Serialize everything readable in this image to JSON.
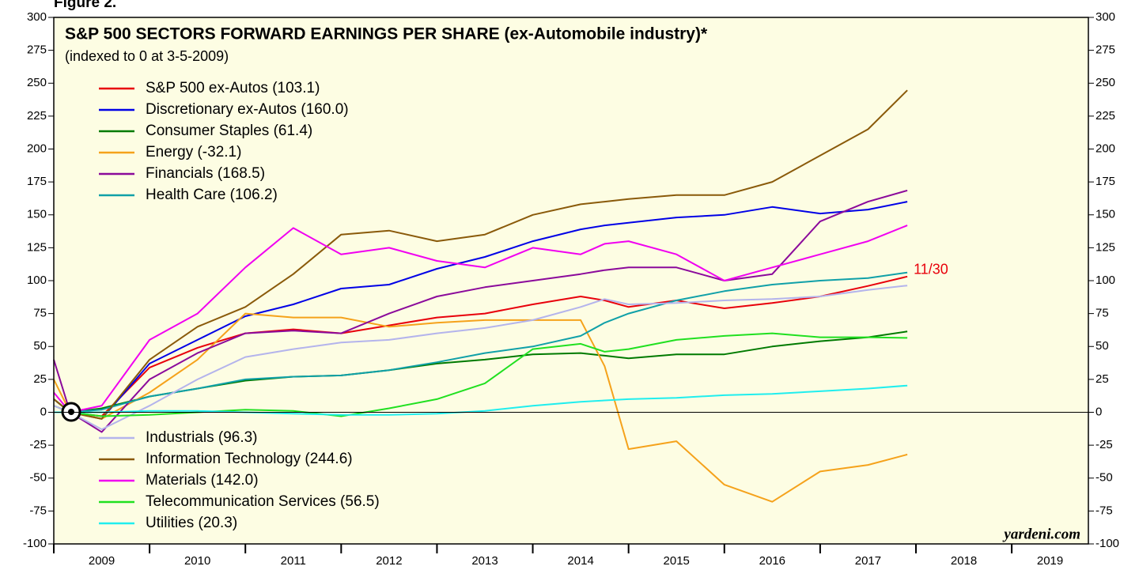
{
  "chart_data": {
    "type": "line",
    "figure_label": "Figure 2.",
    "title": "S&P 500 SECTORS FORWARD EARNINGS PER SHARE (ex-Automobile industry)*",
    "subtitle": "(indexed to 0 at 3-5-2009)",
    "end_annotation": "11/30",
    "source": "yardeni.com",
    "x": [
      2009.0,
      2009.17,
      2009.5,
      2010.0,
      2010.5,
      2011.0,
      2011.5,
      2012.0,
      2012.5,
      2013.0,
      2013.5,
      2014.0,
      2014.5,
      2014.75,
      2015.0,
      2015.5,
      2016.0,
      2016.5,
      2017.0,
      2017.5,
      2017.91
    ],
    "xlim": [
      2009,
      2019.8
    ],
    "xticks": [
      2009,
      2010,
      2011,
      2012,
      2013,
      2014,
      2015,
      2016,
      2017,
      2018,
      2019
    ],
    "ylim": [
      -100,
      300
    ],
    "yticks": [
      -100,
      -75,
      -50,
      -25,
      0,
      25,
      50,
      75,
      100,
      125,
      150,
      175,
      200,
      225,
      250,
      275,
      300
    ],
    "grid": false,
    "series": [
      {
        "name": "S&P 500 ex-Autos (103.1)",
        "color": "#e8000b",
        "values": [
          10,
          0,
          -3,
          34,
          49,
          60,
          63,
          60,
          66,
          72,
          75,
          82,
          88,
          85,
          80,
          85,
          79,
          83,
          88,
          96,
          103.1
        ]
      },
      {
        "name": "Discretionary ex-Autos (160.0)",
        "color": "#0000e6",
        "values": [
          10,
          0,
          -5,
          37,
          55,
          73,
          82,
          94,
          97,
          109,
          118,
          130,
          139,
          142,
          144,
          148,
          150,
          156,
          151,
          154,
          160.0
        ]
      },
      {
        "name": "Consumer Staples (61.4)",
        "color": "#007a00",
        "values": [
          5,
          0,
          3,
          12,
          18,
          24,
          27,
          28,
          32,
          37,
          40,
          44,
          45,
          43,
          41,
          44,
          44,
          50,
          54,
          57,
          61.4
        ]
      },
      {
        "name": "Energy (-32.1)",
        "color": "#f5a21b",
        "values": [
          25,
          0,
          -5,
          15,
          40,
          75,
          72,
          72,
          65,
          68,
          70,
          70,
          70,
          35,
          -28,
          -22,
          -55,
          -68,
          -45,
          -40,
          -32.1
        ]
      },
      {
        "name": "Financials (168.5)",
        "color": "#8b0a9b",
        "values": [
          40,
          0,
          -15,
          25,
          45,
          60,
          62,
          60,
          75,
          88,
          95,
          100,
          105,
          108,
          110,
          110,
          100,
          105,
          145,
          160,
          168.5
        ]
      },
      {
        "name": "Health Care (106.2)",
        "color": "#10a0a8",
        "values": [
          10,
          0,
          2,
          12,
          18,
          25,
          27,
          28,
          32,
          38,
          45,
          50,
          58,
          68,
          75,
          85,
          92,
          97,
          100,
          102,
          106.2
        ]
      },
      {
        "name": "Industrials (96.3)",
        "color": "#b4b4ec",
        "values": [
          5,
          0,
          -13,
          5,
          25,
          42,
          48,
          53,
          55,
          60,
          64,
          70,
          80,
          86,
          82,
          83,
          85,
          86,
          88,
          93,
          96.3
        ]
      },
      {
        "name": "Information Technology (244.6)",
        "color": "#8a5a0a",
        "values": [
          10,
          0,
          -5,
          40,
          65,
          80,
          105,
          135,
          138,
          130,
          135,
          150,
          158,
          160,
          162,
          165,
          165,
          175,
          195,
          215,
          244.6
        ]
      },
      {
        "name": "Materials (142.0)",
        "color": "#f000f0",
        "values": [
          15,
          0,
          5,
          55,
          75,
          110,
          140,
          120,
          125,
          115,
          110,
          125,
          120,
          128,
          130,
          120,
          100,
          110,
          120,
          130,
          142.0
        ]
      },
      {
        "name": "Telecommunication Services (56.5)",
        "color": "#20e020",
        "values": [
          0,
          0,
          -3,
          -2,
          0,
          2,
          1,
          -3,
          3,
          10,
          22,
          48,
          52,
          46,
          48,
          55,
          58,
          60,
          57,
          57,
          56.5
        ]
      },
      {
        "name": "Utilities (20.3)",
        "color": "#20eeee",
        "values": [
          0,
          0,
          0,
          1,
          1,
          0,
          -1,
          -2,
          -2,
          -1,
          1,
          5,
          8,
          9,
          10,
          11,
          13,
          14,
          16,
          18,
          20.3
        ]
      }
    ]
  }
}
